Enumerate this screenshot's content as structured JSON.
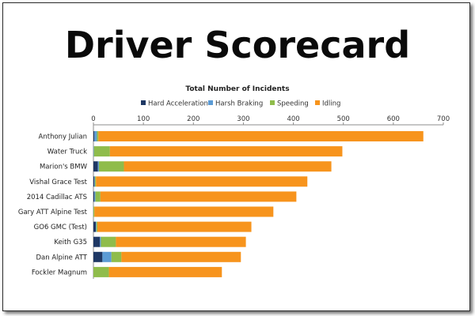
{
  "page": {
    "headline": "Driver Scorecard"
  },
  "chart_data": {
    "type": "bar",
    "orientation": "horizontal",
    "stacked": true,
    "title": "Total Number of Incidents",
    "xlabel": "",
    "ylabel": "",
    "xlim": [
      0,
      700
    ],
    "xticks": [
      0,
      100,
      200,
      300,
      400,
      500,
      600,
      700
    ],
    "x_axis_position": "top",
    "grid": false,
    "legend_position": "top",
    "categories": [
      "Anthony Julian",
      "Water Truck",
      "Marion's BMW",
      "Vishal Grace Test",
      "2014 Cadillac ATS",
      "Gary ATT Alpine Test",
      "GO6 GMC (Test)",
      "Keith G35",
      "Dan Alpine ATT",
      "Fockler Magnum"
    ],
    "series": [
      {
        "name": "Hard Acceleration",
        "color": "#1f3864",
        "values": [
          2,
          0,
          9,
          2,
          2,
          0,
          5,
          13,
          18,
          0
        ]
      },
      {
        "name": "Harsh Braking",
        "color": "#5b9bd5",
        "values": [
          5,
          1,
          2,
          1,
          2,
          0,
          1,
          2,
          18,
          0
        ]
      },
      {
        "name": "Speeding",
        "color": "#8fbc4b",
        "values": [
          3,
          32,
          50,
          2,
          10,
          2,
          2,
          30,
          20,
          31
        ]
      },
      {
        "name": "Idling",
        "color": "#f7941d",
        "values": [
          650,
          465,
          415,
          423,
          392,
          358,
          308,
          260,
          239,
          226
        ]
      }
    ]
  }
}
